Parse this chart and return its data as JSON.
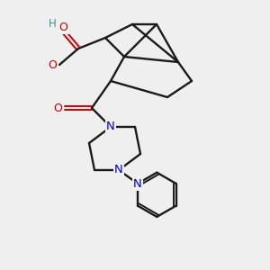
{
  "background_color": "#efefef",
  "bond_color": "#1a1a1a",
  "atom_colors": {
    "O": "#cc0000",
    "N": "#0000cc",
    "H": "#4a8888",
    "C": "#1a1a1a"
  },
  "figsize": [
    3.0,
    3.0
  ],
  "dpi": 100
}
